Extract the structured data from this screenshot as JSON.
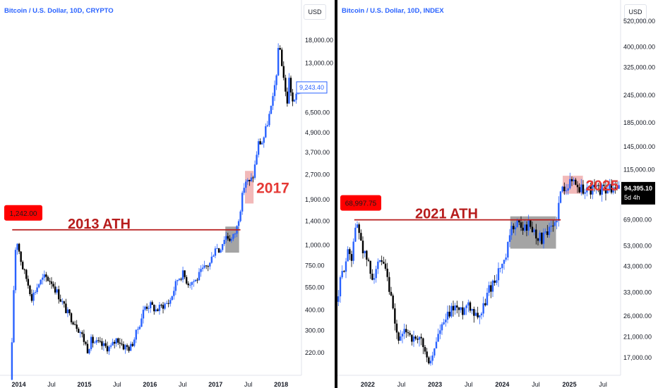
{
  "chart_data": [
    {
      "type": "candlestick",
      "title": "Bitcoin / U.S. Dollar, 10D, CRYPTO",
      "currency_button": "USD",
      "y_scale": "log",
      "ylim": [
        180,
        24000
      ],
      "y_ticks": [
        {
          "label": "18,000.00",
          "value": 18000
        },
        {
          "label": "13,000.00",
          "value": 13000
        },
        {
          "label": "6,500.00",
          "value": 6500
        },
        {
          "label": "4,900.00",
          "value": 4900
        },
        {
          "label": "3,700.00",
          "value": 3700
        },
        {
          "label": "2,700.00",
          "value": 2700
        },
        {
          "label": "1,900.00",
          "value": 1900
        },
        {
          "label": "1,400.00",
          "value": 1400
        },
        {
          "label": "1,000.00",
          "value": 1000
        },
        {
          "label": "750.00",
          "value": 750
        },
        {
          "label": "550.00",
          "value": 550
        },
        {
          "label": "400.00",
          "value": 400
        },
        {
          "label": "300.00",
          "value": 300
        },
        {
          "label": "220.00",
          "value": 220
        }
      ],
      "x_range": [
        2013.8,
        2018.3
      ],
      "x_ticks": [
        {
          "label": "2014",
          "value": 2014.0,
          "major": true
        },
        {
          "label": "Jul",
          "value": 2014.5,
          "major": false
        },
        {
          "label": "2015",
          "value": 2015.0,
          "major": true
        },
        {
          "label": "Jul",
          "value": 2015.5,
          "major": false
        },
        {
          "label": "2016",
          "value": 2016.0,
          "major": true
        },
        {
          "label": "Jul",
          "value": 2016.5,
          "major": false
        },
        {
          "label": "2017",
          "value": 2017.0,
          "major": true
        },
        {
          "label": "Jul",
          "value": 2017.5,
          "major": false
        },
        {
          "label": "2018",
          "value": 2018.0,
          "major": true
        }
      ],
      "last_price": {
        "label": "9,243.40",
        "value": 9243.4
      },
      "ath_level": {
        "value": 1242,
        "badge": "1,242.00",
        "label": "2013 ATH",
        "x_start": 2013.9,
        "x_end": 2017.38
      },
      "highlight_ath_box": {
        "x": [
          2017.15,
          2017.36
        ],
        "y": [
          900,
          1300
        ]
      },
      "highlight_year_box": {
        "x": [
          2017.45,
          2017.58
        ],
        "y": [
          1800,
          2850
        ],
        "label": "2017"
      },
      "key_points": [
        [
          2013.88,
          150
        ],
        [
          2013.92,
          500
        ],
        [
          2013.96,
          1150
        ],
        [
          2014.05,
          750
        ],
        [
          2014.12,
          620
        ],
        [
          2014.2,
          480
        ],
        [
          2014.3,
          580
        ],
        [
          2014.4,
          640
        ],
        [
          2014.5,
          600
        ],
        [
          2014.6,
          500
        ],
        [
          2014.75,
          380
        ],
        [
          2014.85,
          340
        ],
        [
          2014.95,
          290
        ],
        [
          2015.05,
          230
        ],
        [
          2015.1,
          260
        ],
        [
          2015.2,
          250
        ],
        [
          2015.3,
          240
        ],
        [
          2015.4,
          235
        ],
        [
          2015.5,
          270
        ],
        [
          2015.6,
          240
        ],
        [
          2015.7,
          235
        ],
        [
          2015.78,
          280
        ],
        [
          2015.85,
          340
        ],
        [
          2015.92,
          420
        ],
        [
          2016.0,
          430
        ],
        [
          2016.1,
          400
        ],
        [
          2016.2,
          430
        ],
        [
          2016.3,
          450
        ],
        [
          2016.42,
          620
        ],
        [
          2016.5,
          670
        ],
        [
          2016.58,
          590
        ],
        [
          2016.7,
          610
        ],
        [
          2016.8,
          700
        ],
        [
          2016.92,
          780
        ],
        [
          2017.0,
          1000
        ],
        [
          2017.05,
          920
        ],
        [
          2017.15,
          1150
        ],
        [
          2017.25,
          1080
        ],
        [
          2017.32,
          1250
        ],
        [
          2017.38,
          1700
        ],
        [
          2017.45,
          2500
        ],
        [
          2017.52,
          2400
        ],
        [
          2017.58,
          2700
        ],
        [
          2017.65,
          4200
        ],
        [
          2017.72,
          4300
        ],
        [
          2017.8,
          5800
        ],
        [
          2017.87,
          7500
        ],
        [
          2017.93,
          11500
        ],
        [
          2017.97,
          17500
        ],
        [
          2018.0,
          14000
        ],
        [
          2018.03,
          11500
        ],
        [
          2018.06,
          9000
        ],
        [
          2018.09,
          7200
        ],
        [
          2018.12,
          10500
        ],
        [
          2018.16,
          8300
        ],
        [
          2018.19,
          7000
        ],
        [
          2018.22,
          8000
        ],
        [
          2018.26,
          9243
        ]
      ]
    },
    {
      "type": "candlestick",
      "title": "Bitcoin / U.S. Dollar, 10D, INDEX",
      "currency_button": "USD",
      "y_scale": "log",
      "ylim": [
        15500,
        550000
      ],
      "y_ticks": [
        {
          "label": "520,000.00",
          "value": 520000
        },
        {
          "label": "400,000.00",
          "value": 400000
        },
        {
          "label": "325,000.00",
          "value": 325000
        },
        {
          "label": "245,000.00",
          "value": 245000
        },
        {
          "label": "185,000.00",
          "value": 185000
        },
        {
          "label": "145,000.00",
          "value": 145000
        },
        {
          "label": "115,000.00",
          "value": 115000
        },
        {
          "label": "69,000.00",
          "value": 69000
        },
        {
          "label": "53,000.00",
          "value": 53000
        },
        {
          "label": "43,000.00",
          "value": 43000
        },
        {
          "label": "33,000.00",
          "value": 33000
        },
        {
          "label": "26,000.00",
          "value": 26000
        },
        {
          "label": "21,000.00",
          "value": 21000
        },
        {
          "label": "17,000.00",
          "value": 17000
        }
      ],
      "x_range": [
        2021.55,
        2025.75
      ],
      "x_ticks": [
        {
          "label": "2022",
          "value": 2022.0,
          "major": true
        },
        {
          "label": "Jul",
          "value": 2022.5,
          "major": false
        },
        {
          "label": "2023",
          "value": 2023.0,
          "major": true
        },
        {
          "label": "Jul",
          "value": 2023.5,
          "major": false
        },
        {
          "label": "2024",
          "value": 2024.0,
          "major": true
        },
        {
          "label": "Jul",
          "value": 2024.5,
          "major": false
        },
        {
          "label": "2025",
          "value": 2025.0,
          "major": true
        },
        {
          "label": "Jul",
          "value": 2025.5,
          "major": false
        }
      ],
      "last_price": {
        "label": "94,395.10",
        "value": 94395.1,
        "countdown": "5d 4h"
      },
      "ath_level": {
        "value": 68997.75,
        "badge": "68,997.75",
        "label": "2021 ATH",
        "x_start": 2021.8,
        "x_end": 2024.87
      },
      "highlight_ath_box": {
        "x": [
          2024.12,
          2024.8
        ],
        "y": [
          51500,
          71500
        ]
      },
      "highlight_year_box": {
        "x": [
          2024.9,
          2025.2
        ],
        "y": [
          90000,
          108000
        ],
        "label": "2025"
      },
      "key_points": [
        [
          2021.55,
          30000
        ],
        [
          2021.58,
          35000
        ],
        [
          2021.62,
          40000
        ],
        [
          2021.67,
          46000
        ],
        [
          2021.72,
          50000
        ],
        [
          2021.76,
          48000
        ],
        [
          2021.8,
          60000
        ],
        [
          2021.85,
          66000
        ],
        [
          2021.9,
          57000
        ],
        [
          2021.95,
          48000
        ],
        [
          2022.0,
          46000
        ],
        [
          2022.05,
          38000
        ],
        [
          2022.12,
          42000
        ],
        [
          2022.2,
          44000
        ],
        [
          2022.27,
          40000
        ],
        [
          2022.35,
          30000
        ],
        [
          2022.42,
          22000
        ],
        [
          2022.5,
          20000
        ],
        [
          2022.58,
          23000
        ],
        [
          2022.65,
          21000
        ],
        [
          2022.72,
          19500
        ],
        [
          2022.8,
          20500
        ],
        [
          2022.88,
          16500
        ],
        [
          2022.96,
          16800
        ],
        [
          2023.03,
          21000
        ],
        [
          2023.12,
          23500
        ],
        [
          2023.2,
          26000
        ],
        [
          2023.28,
          29000
        ],
        [
          2023.38,
          27000
        ],
        [
          2023.5,
          30000
        ],
        [
          2023.6,
          26500
        ],
        [
          2023.7,
          27000
        ],
        [
          2023.8,
          34000
        ],
        [
          2023.9,
          38000
        ],
        [
          2023.96,
          42500
        ],
        [
          2024.04,
          44000
        ],
        [
          2024.12,
          60000
        ],
        [
          2024.2,
          68000
        ],
        [
          2024.3,
          63000
        ],
        [
          2024.4,
          66000
        ],
        [
          2024.5,
          60000
        ],
        [
          2024.58,
          57000
        ],
        [
          2024.66,
          59000
        ],
        [
          2024.74,
          63000
        ],
        [
          2024.8,
          69000
        ],
        [
          2024.87,
          90000
        ],
        [
          2024.92,
          98000
        ],
        [
          2025.0,
          100000
        ],
        [
          2025.06,
          104000
        ],
        [
          2025.12,
          97000
        ],
        [
          2025.17,
          94395
        ]
      ]
    }
  ]
}
